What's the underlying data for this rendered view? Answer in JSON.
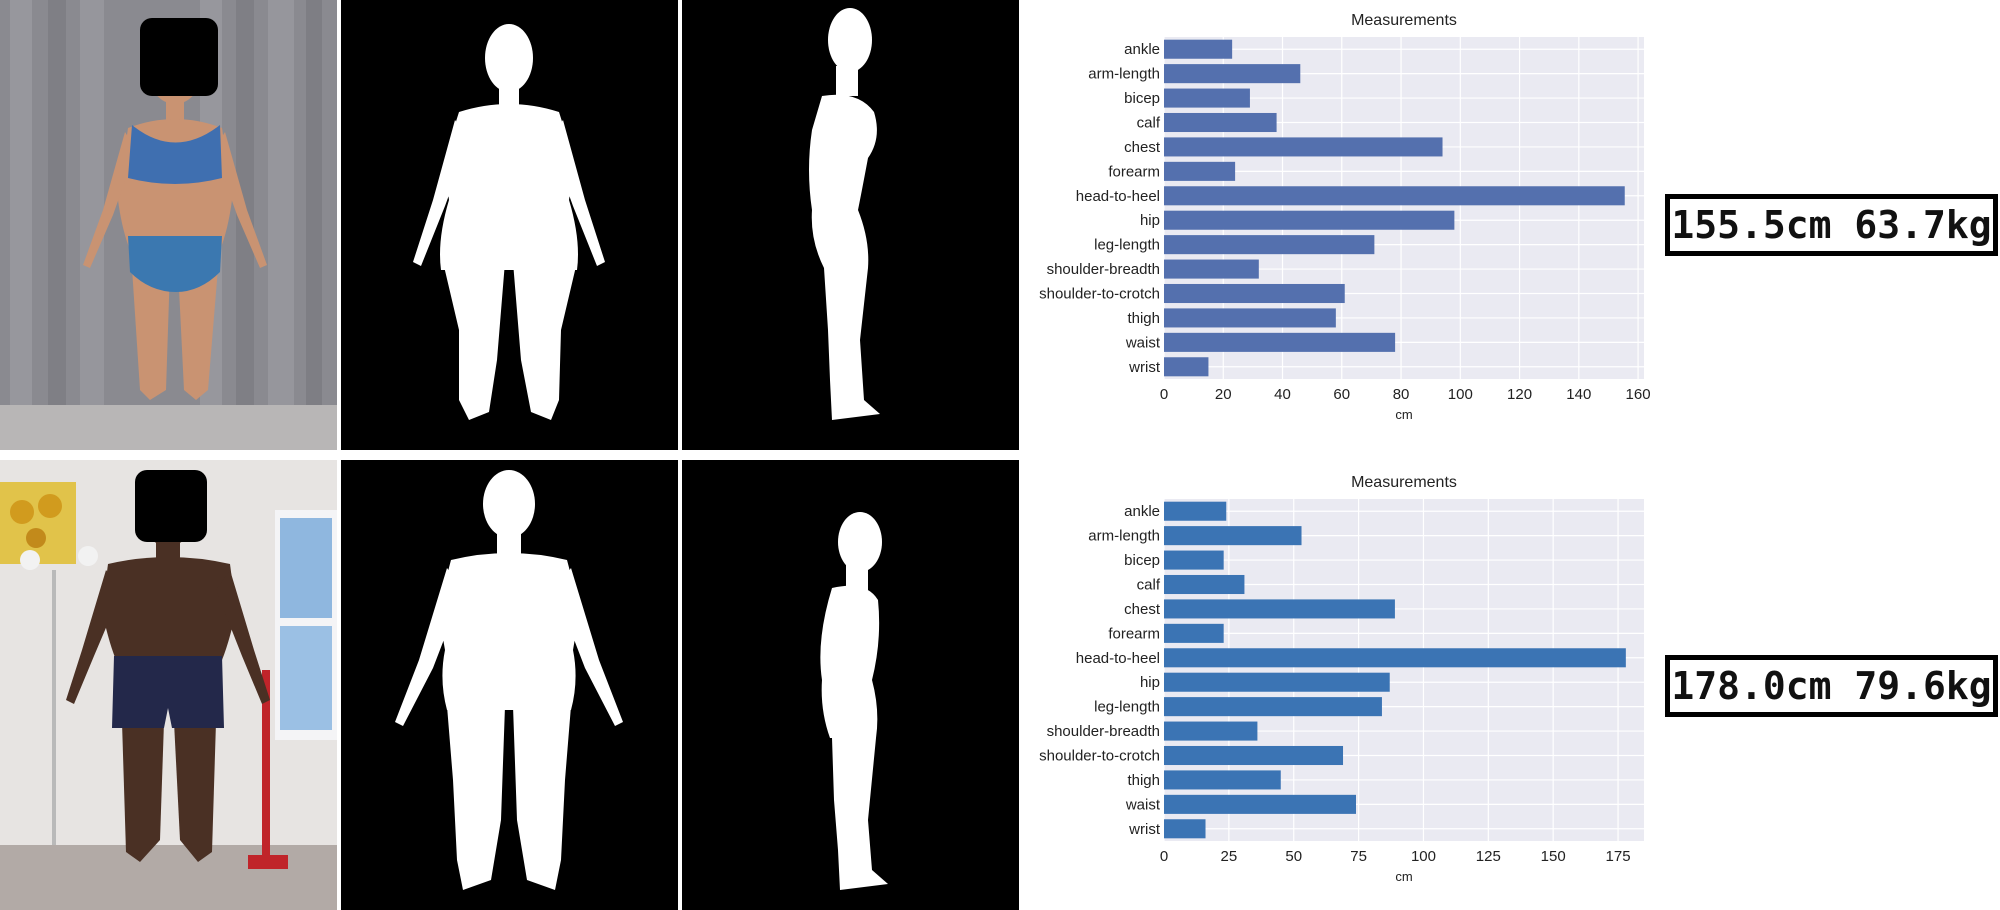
{
  "rows": [
    {
      "readout": "155.5cm 63.7kg",
      "photo": {
        "bg": "#8e8e92",
        "skin": "#c99372",
        "wear": "#3f6fb0"
      }
    },
    {
      "readout": "178.0cm 79.6kg",
      "photo": {
        "bg": "#e6e3e1",
        "skin": "#4a3024",
        "wear": "#23284a"
      }
    }
  ],
  "chart_data": [
    {
      "type": "bar",
      "orientation": "horizontal",
      "title": "Measurements",
      "xlabel": "cm",
      "ylabel": "",
      "xlim": [
        0,
        162
      ],
      "xticks": [
        0,
        20,
        40,
        60,
        80,
        100,
        120,
        140,
        160
      ],
      "grid": true,
      "bar_color": "#5470ae",
      "background": "#eaeaf2",
      "categories": [
        "ankle",
        "arm-length",
        "bicep",
        "calf",
        "chest",
        "forearm",
        "head-to-heel",
        "hip",
        "leg-length",
        "shoulder-breadth",
        "shoulder-to-crotch",
        "thigh",
        "waist",
        "wrist"
      ],
      "values": [
        23,
        46,
        29,
        38,
        94,
        24,
        155.5,
        98,
        71,
        32,
        61,
        58,
        78,
        15
      ]
    },
    {
      "type": "bar",
      "orientation": "horizontal",
      "title": "Measurements",
      "xlabel": "cm",
      "ylabel": "",
      "xlim": [
        0,
        185
      ],
      "xticks": [
        0,
        25,
        50,
        75,
        100,
        125,
        150,
        175
      ],
      "grid": true,
      "bar_color": "#3b74b4",
      "background": "#eaeaf2",
      "categories": [
        "ankle",
        "arm-length",
        "bicep",
        "calf",
        "chest",
        "forearm",
        "head-to-heel",
        "hip",
        "leg-length",
        "shoulder-breadth",
        "shoulder-to-crotch",
        "thigh",
        "waist",
        "wrist"
      ],
      "values": [
        24,
        53,
        23,
        31,
        89,
        23,
        178,
        87,
        84,
        36,
        69,
        45,
        74,
        16
      ]
    }
  ]
}
